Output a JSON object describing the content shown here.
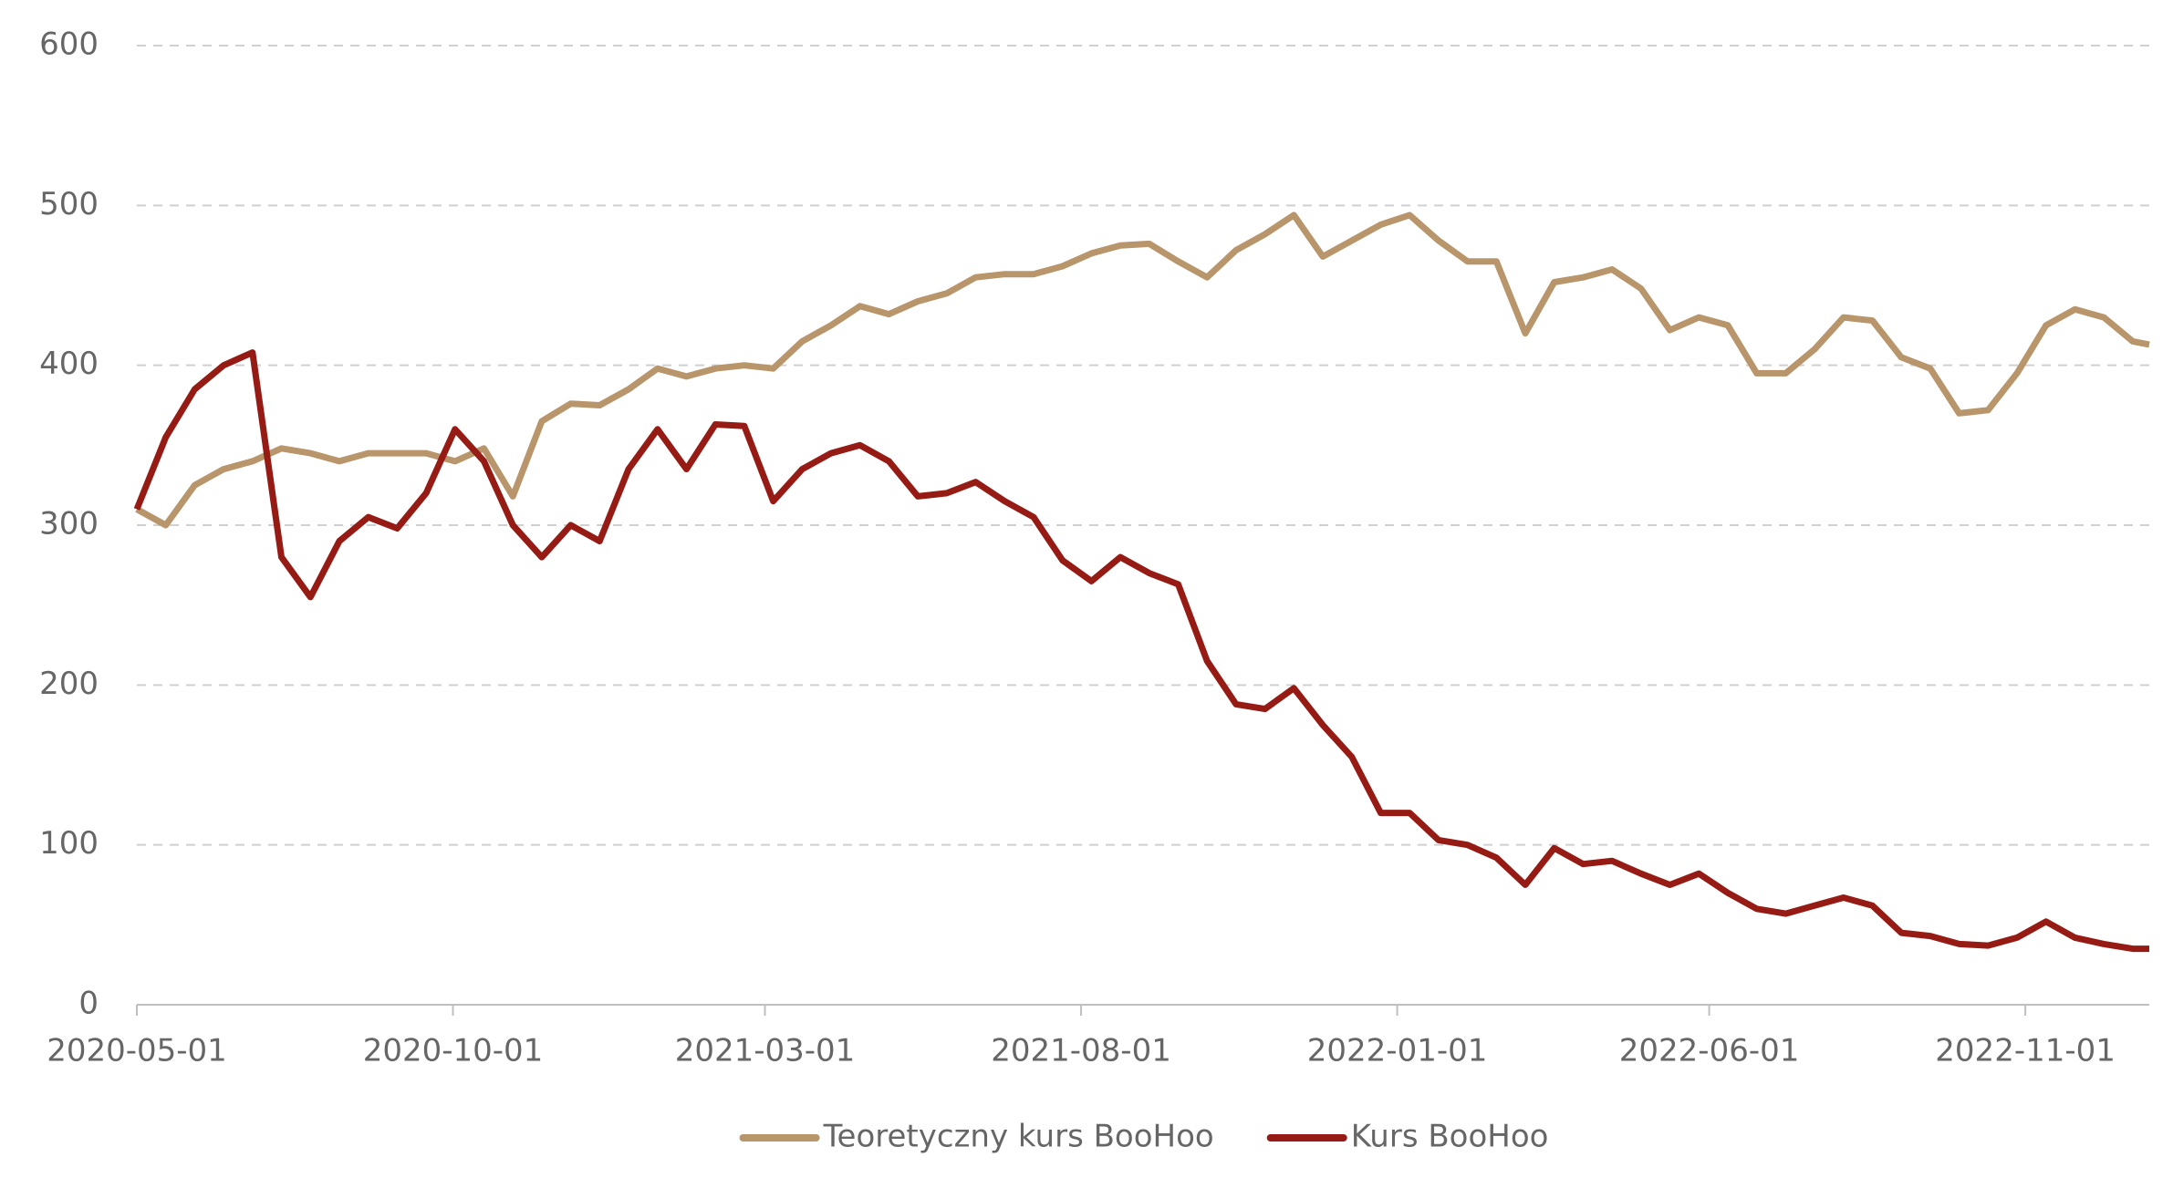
{
  "chart_data": {
    "type": "line",
    "x": [
      "2020-05-01",
      "2020-05-15",
      "2020-05-29",
      "2020-06-12",
      "2020-06-26",
      "2020-07-10",
      "2020-07-24",
      "2020-08-07",
      "2020-08-21",
      "2020-09-04",
      "2020-09-18",
      "2020-10-02",
      "2020-10-16",
      "2020-10-30",
      "2020-11-13",
      "2020-11-27",
      "2020-12-11",
      "2020-12-25",
      "2021-01-08",
      "2021-01-22",
      "2021-02-05",
      "2021-02-19",
      "2021-03-05",
      "2021-03-19",
      "2021-04-02",
      "2021-04-16",
      "2021-04-30",
      "2021-05-14",
      "2021-05-28",
      "2021-06-11",
      "2021-06-25",
      "2021-07-09",
      "2021-07-23",
      "2021-08-06",
      "2021-08-20",
      "2021-09-03",
      "2021-09-17",
      "2021-10-01",
      "2021-10-15",
      "2021-10-29",
      "2021-11-12",
      "2021-11-26",
      "2021-12-10",
      "2021-12-24",
      "2022-01-07",
      "2022-01-21",
      "2022-02-04",
      "2022-02-18",
      "2022-03-04",
      "2022-03-18",
      "2022-04-01",
      "2022-04-15",
      "2022-04-29",
      "2022-05-13",
      "2022-05-27",
      "2022-06-10",
      "2022-06-24",
      "2022-07-08",
      "2022-07-22",
      "2022-08-05",
      "2022-08-19",
      "2022-09-02",
      "2022-09-16",
      "2022-09-30",
      "2022-10-14",
      "2022-10-28",
      "2022-11-11",
      "2022-11-25",
      "2022-12-09",
      "2022-12-23",
      "2022-12-31"
    ],
    "series": [
      {
        "name": "Teoretyczny kurs BooHoo",
        "color": "#b8956a",
        "values": [
          310,
          300,
          325,
          335,
          340,
          348,
          345,
          340,
          345,
          345,
          345,
          340,
          348,
          318,
          365,
          376,
          375,
          385,
          398,
          393,
          398,
          400,
          398,
          415,
          425,
          437,
          432,
          440,
          445,
          455,
          457,
          457,
          462,
          470,
          475,
          476,
          465,
          455,
          472,
          482,
          494,
          468,
          478,
          488,
          494,
          478,
          465,
          465,
          420,
          452,
          455,
          460,
          448,
          422,
          430,
          425,
          395,
          395,
          410,
          430,
          428,
          405,
          398,
          370,
          372,
          395,
          425,
          435,
          430,
          415,
          413
        ]
      },
      {
        "name": "Kurs BooHoo",
        "color": "#961b14",
        "values": [
          310,
          355,
          385,
          400,
          408,
          280,
          255,
          290,
          305,
          298,
          320,
          360,
          340,
          300,
          280,
          300,
          290,
          335,
          360,
          335,
          363,
          362,
          315,
          335,
          345,
          350,
          340,
          318,
          320,
          327,
          315,
          305,
          278,
          265,
          280,
          270,
          263,
          215,
          188,
          185,
          198,
          175,
          155,
          120,
          120,
          103,
          100,
          92,
          75,
          98,
          88,
          90,
          82,
          75,
          82,
          70,
          60,
          57,
          62,
          67,
          62,
          45,
          43,
          38,
          37,
          42,
          52,
          42,
          38,
          35,
          35
        ]
      }
    ],
    "xlim": [
      "2020-05-01",
      "2022-12-31"
    ],
    "xticks": [
      "2020-05-01",
      "2020-10-01",
      "2021-03-01",
      "2021-08-01",
      "2022-01-01",
      "2022-06-01",
      "2022-11-01"
    ],
    "ylim": [
      0,
      600
    ],
    "yticks": [
      0,
      100,
      200,
      300,
      400,
      500,
      600
    ],
    "grid": true,
    "legend": "bottom"
  }
}
